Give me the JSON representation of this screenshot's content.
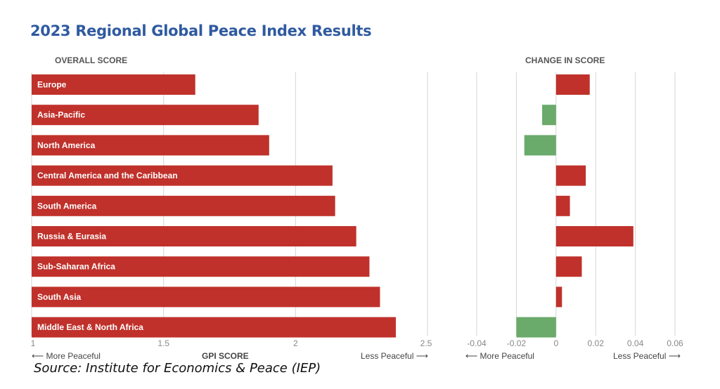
{
  "title": "2023 Regional Global Peace Index Results",
  "left_header": "OVERALL SCORE",
  "right_header": "CHANGE IN SCORE",
  "left_axis": {
    "more": "More Peaceful",
    "label": "GPI SCORE",
    "less": "Less Peaceful"
  },
  "right_axis": {
    "more": "More Peaceful",
    "less": "Less Peaceful"
  },
  "source": "Source:  Institute for Economics & Peace (IEP)",
  "colors": {
    "title": "#2f5aa0",
    "positive": "#c0312b",
    "negative": "#6aaa6a"
  },
  "chart_data": [
    {
      "type": "bar",
      "orientation": "horizontal",
      "title": "OVERALL SCORE",
      "xlabel": "GPI SCORE",
      "xlim": [
        1,
        2.5
      ],
      "xticks": [
        "1",
        "1.5",
        "2",
        "2.5"
      ],
      "categories": [
        "Europe",
        "Asia-Pacific",
        "North America",
        "Central America and the Caribbean",
        "South America",
        "Russia & Eurasia",
        "Sub-Saharan Africa",
        "South Asia",
        "Middle East & North Africa"
      ],
      "values": [
        1.62,
        1.86,
        1.9,
        2.14,
        2.15,
        2.23,
        2.28,
        2.32,
        2.38
      ]
    },
    {
      "type": "bar",
      "orientation": "horizontal",
      "title": "CHANGE IN SCORE",
      "xlim": [
        -0.04,
        0.06
      ],
      "xticks": [
        "-0.04",
        "-0.02",
        "0",
        "0.02",
        "0.04",
        "0.06"
      ],
      "categories": [
        "Europe",
        "Asia-Pacific",
        "North America",
        "Central America and the Caribbean",
        "South America",
        "Russia & Eurasia",
        "Sub-Saharan Africa",
        "South Asia",
        "Middle East & North Africa"
      ],
      "values": [
        0.017,
        -0.007,
        -0.016,
        0.015,
        0.007,
        0.039,
        0.013,
        0.003,
        -0.02
      ]
    }
  ]
}
